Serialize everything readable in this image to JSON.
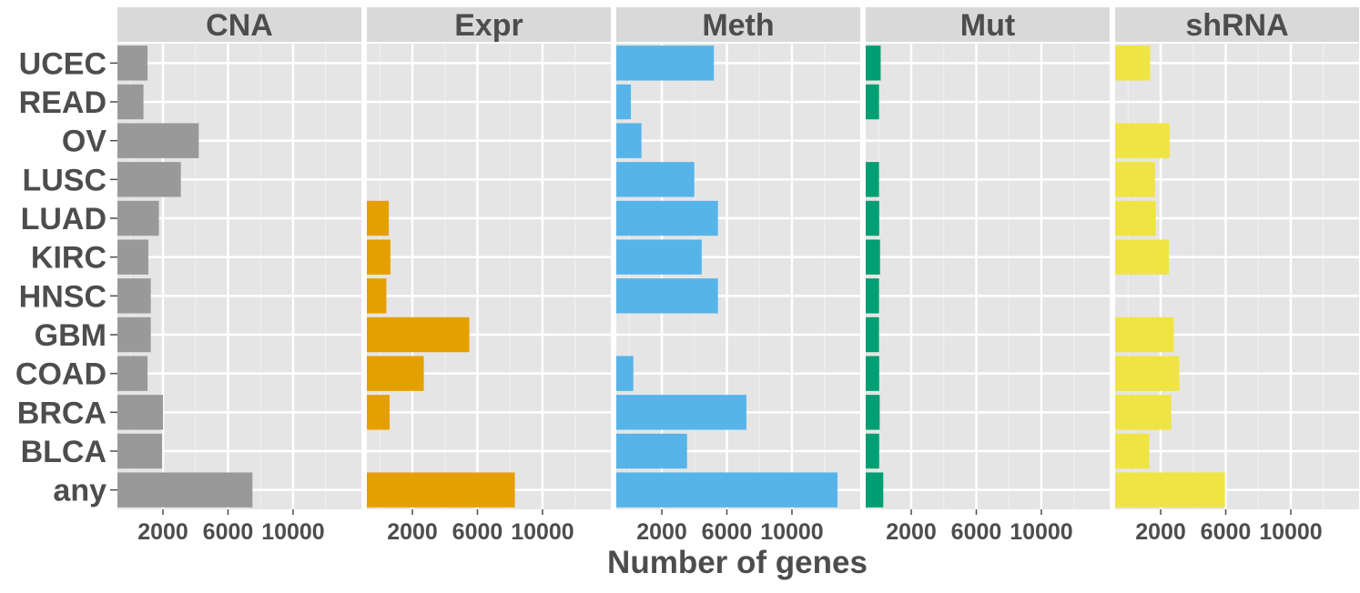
{
  "chart_data": {
    "type": "bar",
    "orientation": "horizontal",
    "xlabel": "Number of genes",
    "ylabel": "",
    "xlim": [
      -800,
      14200
    ],
    "x_ticks": [
      2000,
      6000,
      10000
    ],
    "x_tick_labels": [
      "2000",
      "6000",
      "10000"
    ],
    "grid": true,
    "categories": [
      "UCEC",
      "READ",
      "OV",
      "LUSC",
      "LUAD",
      "KIRC",
      "HNSC",
      "GBM",
      "COAD",
      "BRCA",
      "BLCA",
      "any"
    ],
    "panels": [
      {
        "name": "CNA",
        "color": "#999999",
        "values": [
          1050,
          800,
          4200,
          3100,
          1750,
          1100,
          1250,
          1250,
          1050,
          2000,
          1950,
          7500
        ]
      },
      {
        "name": "Expr",
        "color": "#E69F00",
        "values": null
      },
      {
        "name": "Meth",
        "color": "#56B4E9",
        "values": [
          5200,
          100,
          750,
          4000,
          5450,
          4450,
          5450,
          null,
          250,
          7200,
          3550,
          12800
        ]
      },
      {
        "name": "Mut",
        "color": "#009E73",
        "values": [
          120,
          20,
          0,
          20,
          30,
          80,
          20,
          20,
          30,
          60,
          30,
          280
        ]
      },
      {
        "name": "shRNA",
        "color": "#F0E442",
        "values": [
          1350,
          null,
          2550,
          1650,
          1700,
          2500,
          null,
          2800,
          3150,
          2650,
          1300,
          5950
        ]
      }
    ]
  }
}
